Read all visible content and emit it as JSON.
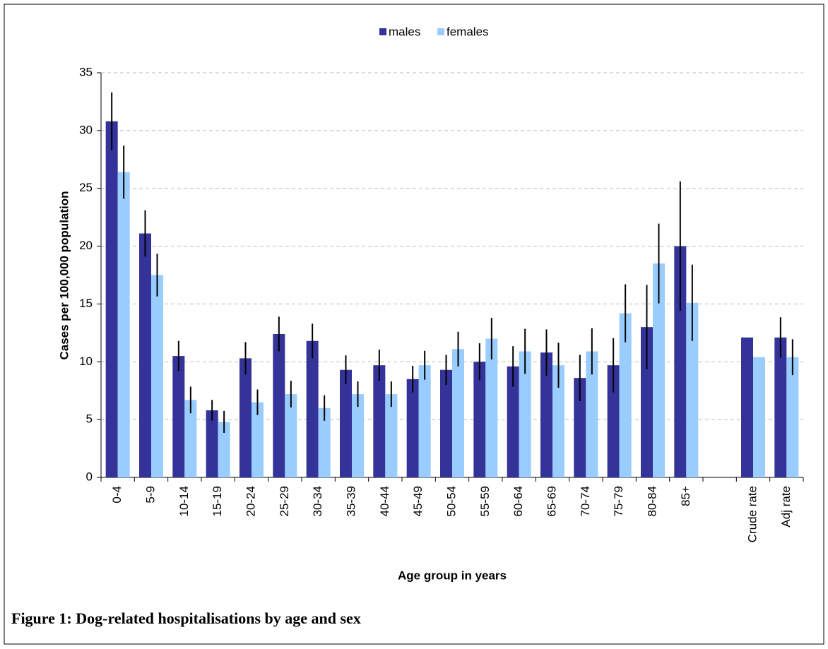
{
  "chart_data": {
    "type": "bar",
    "caption": "Figure 1: Dog-related hospitalisations by age and sex",
    "x_label": "Age group in years",
    "y_label": "Cases per 100,000 population",
    "categories": [
      "0-4",
      "5-9",
      "10-14",
      "15-19",
      "20-24",
      "25-29",
      "30-34",
      "35-39",
      "40-44",
      "45-49",
      "50-54",
      "55-59",
      "60-64",
      "65-69",
      "70-74",
      "75-79",
      "80-84",
      "85+",
      null,
      "Crude rate",
      "Adj rate"
    ],
    "series": [
      {
        "name": "males",
        "color": "#333399",
        "values": [
          30.8,
          21.1,
          10.5,
          5.8,
          10.3,
          12.4,
          11.8,
          9.3,
          9.7,
          8.5,
          9.3,
          10.0,
          9.6,
          10.8,
          8.6,
          9.7,
          13.0,
          20.0,
          null,
          12.1,
          12.1
        ],
        "errors": [
          2.5,
          2.0,
          1.3,
          0.9,
          1.4,
          1.5,
          1.5,
          1.25,
          1.35,
          1.15,
          1.3,
          1.6,
          1.75,
          2.0,
          2.0,
          2.35,
          3.65,
          5.6,
          null,
          null,
          1.75
        ]
      },
      {
        "name": "females",
        "color": "#99ccff",
        "values": [
          26.4,
          17.5,
          6.7,
          4.8,
          6.5,
          7.2,
          6.0,
          7.2,
          7.2,
          9.7,
          11.1,
          12.0,
          10.9,
          9.7,
          10.9,
          14.2,
          18.5,
          15.1,
          null,
          10.4,
          10.4
        ],
        "errors": [
          2.3,
          1.85,
          1.15,
          0.95,
          1.1,
          1.15,
          1.1,
          1.1,
          1.1,
          1.25,
          1.5,
          1.8,
          1.95,
          1.95,
          2.0,
          2.5,
          3.45,
          3.3,
          null,
          null,
          1.55
        ]
      }
    ],
    "ylim": [
      0,
      35
    ],
    "yticks": [
      0,
      5,
      10,
      15,
      20,
      25,
      30,
      35
    ],
    "grid": true
  }
}
